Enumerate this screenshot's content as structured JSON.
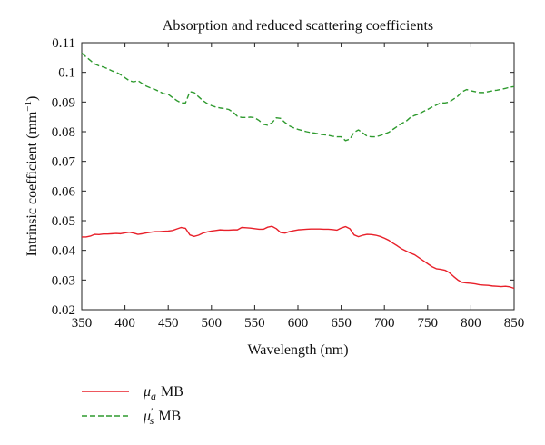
{
  "chart_data": {
    "type": "line",
    "title": "Absorption and reduced scattering coefficients",
    "xlabel": "Wavelength (nm)",
    "ylabel": "Intrinsic coefficient (mm",
    "ylabel_superscript": "−1",
    "ylabel_close": ")",
    "xlim": [
      350,
      850
    ],
    "ylim": [
      0.02,
      0.11
    ],
    "xticks": [
      350,
      400,
      450,
      500,
      550,
      600,
      650,
      700,
      750,
      800,
      850
    ],
    "yticks": [
      0.02,
      0.03,
      0.04,
      0.05,
      0.06,
      0.07,
      0.08,
      0.09,
      0.1,
      0.11
    ],
    "ytick_labels": [
      "0.02",
      "0.03",
      "0.04",
      "0.05",
      "0.06",
      "0.07",
      "0.08",
      "0.09",
      "0.1",
      "0.11"
    ],
    "grid": false,
    "legend_position": "below-left",
    "series": [
      {
        "name": "μa MB",
        "legend_symbol": "μ",
        "legend_subscript": "a",
        "legend_suffix": "MB",
        "color": "#e8202a",
        "style": "solid",
        "x": [
          350,
          355,
          360,
          365,
          370,
          375,
          380,
          385,
          390,
          395,
          400,
          405,
          410,
          415,
          420,
          425,
          430,
          435,
          440,
          445,
          450,
          455,
          460,
          465,
          470,
          475,
          480,
          485,
          490,
          495,
          500,
          505,
          510,
          515,
          520,
          525,
          530,
          535,
          540,
          545,
          550,
          555,
          560,
          565,
          570,
          575,
          580,
          585,
          590,
          595,
          600,
          605,
          610,
          615,
          620,
          625,
          630,
          635,
          640,
          645,
          650,
          655,
          660,
          665,
          670,
          675,
          680,
          685,
          690,
          695,
          700,
          705,
          710,
          715,
          720,
          725,
          730,
          735,
          740,
          745,
          750,
          755,
          760,
          765,
          770,
          775,
          780,
          785,
          790,
          795,
          800,
          805,
          810,
          815,
          820,
          825,
          830,
          835,
          840,
          845,
          850
        ],
        "values": [
          0.0445,
          0.0445,
          0.0448,
          0.0454,
          0.0453,
          0.0455,
          0.0455,
          0.0456,
          0.0457,
          0.0456,
          0.0459,
          0.0461,
          0.0458,
          0.0454,
          0.0456,
          0.0459,
          0.0461,
          0.0463,
          0.0463,
          0.0464,
          0.0465,
          0.0467,
          0.0472,
          0.0477,
          0.0474,
          0.0452,
          0.0447,
          0.0451,
          0.0458,
          0.0462,
          0.0465,
          0.0467,
          0.0469,
          0.0468,
          0.0468,
          0.0469,
          0.0469,
          0.0477,
          0.0476,
          0.0475,
          0.0473,
          0.0471,
          0.0471,
          0.0478,
          0.0481,
          0.0473,
          0.046,
          0.0458,
          0.0463,
          0.0466,
          0.0469,
          0.047,
          0.0471,
          0.0472,
          0.0472,
          0.0472,
          0.0471,
          0.0471,
          0.047,
          0.0468,
          0.0475,
          0.048,
          0.0473,
          0.0452,
          0.0446,
          0.0451,
          0.0454,
          0.0453,
          0.0451,
          0.0447,
          0.0441,
          0.0434,
          0.0424,
          0.0415,
          0.0405,
          0.0398,
          0.0391,
          0.0385,
          0.0375,
          0.0365,
          0.0355,
          0.0345,
          0.0338,
          0.0336,
          0.0333,
          0.0325,
          0.0312,
          0.03,
          0.0292,
          0.029,
          0.0289,
          0.0287,
          0.0284,
          0.0283,
          0.0282,
          0.028,
          0.0279,
          0.0278,
          0.0279,
          0.0277,
          0.0272
        ]
      },
      {
        "name": "μ's MB",
        "legend_symbol": "μ",
        "legend_superscript": "′",
        "legend_subscript": "s",
        "legend_suffix": "MB",
        "color": "#2e9a2e",
        "style": "dashed",
        "x": [
          350,
          355,
          360,
          365,
          370,
          375,
          380,
          385,
          390,
          395,
          400,
          405,
          410,
          415,
          420,
          425,
          430,
          435,
          440,
          445,
          450,
          455,
          460,
          465,
          470,
          475,
          480,
          485,
          490,
          495,
          500,
          505,
          510,
          515,
          520,
          525,
          530,
          535,
          540,
          545,
          550,
          555,
          560,
          565,
          570,
          575,
          580,
          585,
          590,
          595,
          600,
          605,
          610,
          615,
          620,
          625,
          630,
          635,
          640,
          645,
          650,
          655,
          660,
          665,
          670,
          675,
          680,
          685,
          690,
          695,
          700,
          705,
          710,
          715,
          720,
          725,
          730,
          735,
          740,
          745,
          750,
          755,
          760,
          765,
          770,
          775,
          780,
          785,
          790,
          795,
          800,
          805,
          810,
          815,
          820,
          825,
          830,
          835,
          840,
          845,
          850
        ],
        "values": [
          0.1065,
          0.1052,
          0.104,
          0.1028,
          0.1022,
          0.1018,
          0.1012,
          0.1005,
          0.1,
          0.0992,
          0.0982,
          0.0972,
          0.0968,
          0.0972,
          0.0962,
          0.0953,
          0.0947,
          0.0942,
          0.0935,
          0.0928,
          0.0926,
          0.0915,
          0.0905,
          0.0897,
          0.0897,
          0.0935,
          0.0932,
          0.0918,
          0.0905,
          0.0895,
          0.0888,
          0.0883,
          0.088,
          0.0878,
          0.0875,
          0.0866,
          0.0852,
          0.0848,
          0.0848,
          0.0849,
          0.0847,
          0.0838,
          0.0825,
          0.0822,
          0.083,
          0.0847,
          0.0845,
          0.0831,
          0.082,
          0.0813,
          0.0808,
          0.0804,
          0.08,
          0.0797,
          0.0795,
          0.0792,
          0.079,
          0.0788,
          0.0785,
          0.0783,
          0.0783,
          0.077,
          0.0775,
          0.0798,
          0.0806,
          0.0796,
          0.0785,
          0.0783,
          0.0783,
          0.0787,
          0.0792,
          0.0798,
          0.0808,
          0.0818,
          0.0828,
          0.0835,
          0.0848,
          0.0855,
          0.086,
          0.0868,
          0.0875,
          0.0883,
          0.089,
          0.0897,
          0.0897,
          0.09,
          0.091,
          0.092,
          0.0935,
          0.0942,
          0.0938,
          0.0935,
          0.0932,
          0.0932,
          0.0935,
          0.0938,
          0.094,
          0.0943,
          0.0946,
          0.095,
          0.0952
        ]
      }
    ]
  }
}
